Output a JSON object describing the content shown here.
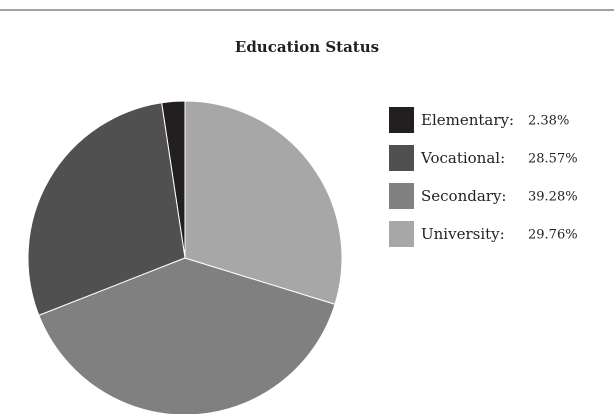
{
  "chart_data": {
    "type": "pie",
    "title": "Education Status",
    "categories": [
      "Elementary:",
      "Vocational:",
      "Secondary:",
      "University:"
    ],
    "values": [
      2.38,
      28.57,
      39.28,
      29.76
    ],
    "value_labels": [
      "2.38%",
      "28.57%",
      "39.28%",
      "29.76%"
    ],
    "colors": [
      "#231f20",
      "#505050",
      "#808080",
      "#a7a7a7"
    ],
    "legend": "right"
  }
}
